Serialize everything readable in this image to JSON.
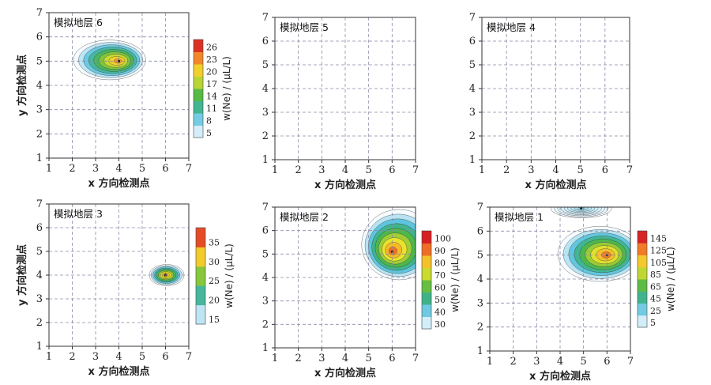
{
  "chart_data": [
    {
      "type": "heatmap",
      "title": "模拟地层 6",
      "xlabel": "x 方向检测点",
      "ylabel": "y 方向检测点",
      "xlim": [
        1,
        7
      ],
      "ylim": [
        1,
        7
      ],
      "xticks": [
        "1",
        "2",
        "3",
        "4",
        "5",
        "6",
        "7"
      ],
      "yticks": [
        "1",
        "2",
        "3",
        "4",
        "5",
        "6",
        "7"
      ],
      "colorbar": {
        "label": "w(Ne) / (μL/L)",
        "ticks": [
          5,
          8,
          11,
          14,
          17,
          20,
          23,
          26
        ],
        "min": 5,
        "max": 28
      },
      "hotspots": [
        {
          "x": 4.0,
          "y": 5.0,
          "peak": 26,
          "base": 5,
          "rx": 1.55,
          "ry": 0.82,
          "cx": 3.6,
          "cy": 5.05
        }
      ]
    },
    {
      "type": "heatmap",
      "title": "模拟地层 5",
      "xlabel": "x 方向检测点",
      "ylabel": "",
      "xlim": [
        1,
        7
      ],
      "ylim": [
        1,
        7
      ],
      "xticks": [
        "1",
        "2",
        "3",
        "4",
        "5",
        "6",
        "7"
      ],
      "yticks": [
        "1",
        "2",
        "3",
        "4",
        "5",
        "6",
        "7"
      ],
      "hotspots": []
    },
    {
      "type": "heatmap",
      "title": "模拟地层 4",
      "xlabel": "x 方向检测点",
      "ylabel": "",
      "xlim": [
        1,
        7
      ],
      "ylim": [
        1,
        7
      ],
      "xticks": [
        "1",
        "2",
        "3",
        "4",
        "5",
        "6",
        "7"
      ],
      "yticks": [
        "1",
        "2",
        "3",
        "4",
        "5",
        "6",
        "7"
      ],
      "hotspots": []
    },
    {
      "type": "heatmap",
      "title": "模拟地层 3",
      "xlabel": "x 方向检测点",
      "ylabel": "y 方向检测点",
      "xlim": [
        1,
        7
      ],
      "ylim": [
        1,
        7
      ],
      "xticks": [
        "1",
        "2",
        "3",
        "4",
        "5",
        "6",
        "7"
      ],
      "yticks": [
        "1",
        "2",
        "3",
        "4",
        "5",
        "6",
        "7"
      ],
      "colorbar": {
        "label": "w(Ne) / (μL/L)",
        "ticks": [
          15,
          20,
          25,
          30,
          35
        ],
        "min": 15,
        "max": 39
      },
      "hotspots": [
        {
          "x": 6.0,
          "y": 4.0,
          "peak": 38,
          "base": 15,
          "rx": 0.75,
          "ry": 0.45,
          "cx": 6.05,
          "cy": 4.0
        }
      ]
    },
    {
      "type": "heatmap",
      "title": "模拟地层 2",
      "xlabel": "x 方向检测点",
      "ylabel": "",
      "xlim": [
        1,
        7
      ],
      "ylim": [
        1,
        7
      ],
      "xticks": [
        "1",
        "2",
        "3",
        "4",
        "5",
        "6",
        "7"
      ],
      "yticks": [
        "1",
        "2",
        "3",
        "4",
        "5",
        "6",
        "7"
      ],
      "colorbar": {
        "label": "w(Ne) / (μL/L)",
        "ticks": [
          30,
          40,
          50,
          60,
          70,
          80,
          90,
          100
        ],
        "min": 30,
        "max": 103
      },
      "hotspots": [
        {
          "x": 6.0,
          "y": 5.1,
          "peak": 102,
          "base": 30,
          "rx": 1.6,
          "ry": 1.5,
          "cx": 6.3,
          "cy": 5.4
        }
      ]
    },
    {
      "type": "heatmap",
      "title": "模拟地层 1",
      "xlabel": "x 方向检测点",
      "ylabel": "",
      "xlim": [
        1,
        7
      ],
      "ylim": [
        1,
        7
      ],
      "xticks": [
        "1",
        "2",
        "3",
        "4",
        "5",
        "6",
        "7"
      ],
      "yticks": [
        "1",
        "2",
        "3",
        "4",
        "5",
        "6",
        "7"
      ],
      "colorbar": {
        "label": "w(Ne) / (μL/L)",
        "ticks": [
          5,
          25,
          45,
          65,
          85,
          105,
          125,
          145
        ],
        "min": 5,
        "max": 155
      },
      "hotspots": [
        {
          "x": 6.0,
          "y": 5.0,
          "peak": 150,
          "base": 5,
          "rx": 1.8,
          "ry": 1.15,
          "cx": 5.7,
          "cy": 5.05
        },
        {
          "x": 4.9,
          "y": 6.95,
          "peak": 30,
          "base": 5,
          "rx": 1.3,
          "ry": 0.4,
          "cx": 4.9,
          "cy": 6.95
        }
      ]
    }
  ],
  "colormap": [
    "#f5fbff",
    "#b8e3f2",
    "#5cc4dd",
    "#3fb38a",
    "#4fb846",
    "#a6cf36",
    "#efe52c",
    "#f7b42a",
    "#ef6a26",
    "#d62024"
  ]
}
